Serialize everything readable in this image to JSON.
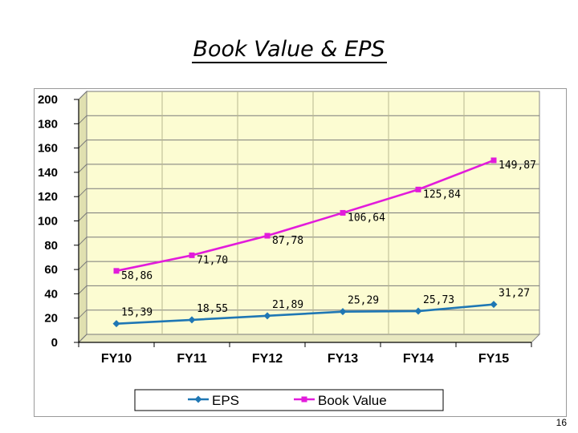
{
  "page": {
    "slide_number": "16"
  },
  "chart_data": {
    "type": "line",
    "title": "Book Value & EPS",
    "xlabel": "",
    "ylabel": "",
    "categories": [
      "FY10",
      "FY11",
      "FY12",
      "FY13",
      "FY14",
      "FY15"
    ],
    "ylim": [
      0,
      200
    ],
    "yticks": [
      0,
      20,
      40,
      60,
      80,
      100,
      120,
      140,
      160,
      180,
      200
    ],
    "grid": true,
    "legend_position": "bottom",
    "series": [
      {
        "name": "EPS",
        "values": [
          15.39,
          18.55,
          21.89,
          25.29,
          25.73,
          31.27
        ],
        "labels": [
          "15,39",
          "18,55",
          "21,89",
          "25,29",
          "25,73",
          "31,27"
        ],
        "color": "#1f77b4",
        "marker": "diamond"
      },
      {
        "name": "Book Value",
        "values": [
          58.86,
          71.7,
          87.78,
          106.64,
          125.84,
          149.87
        ],
        "labels": [
          "58,86",
          "71,70",
          "87,78",
          "106,64",
          "125,84",
          "149,87"
        ],
        "color": "#e21bdb",
        "marker": "square"
      }
    ],
    "colors": {
      "plot_background": "#fcfcd2",
      "grid": "#7a7a7a",
      "axis": "#000000"
    }
  }
}
